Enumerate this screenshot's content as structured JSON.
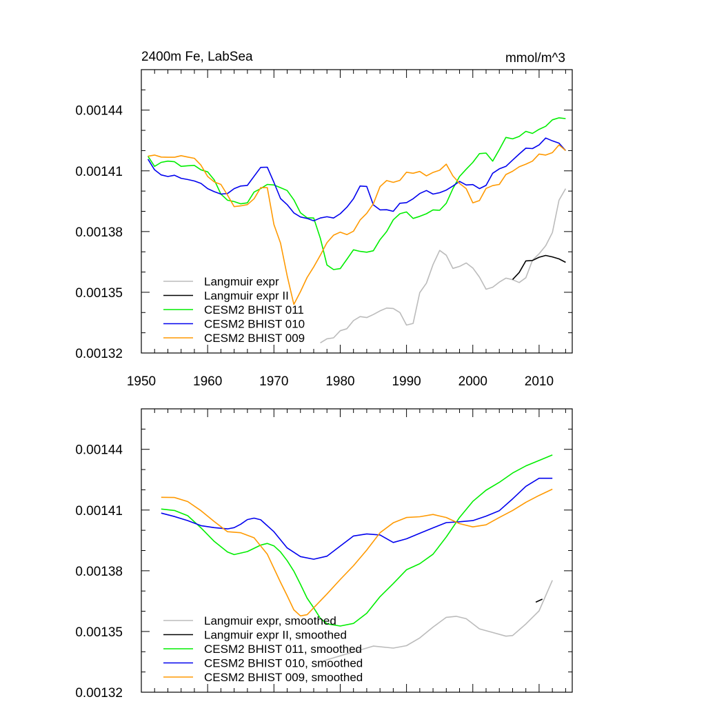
{
  "chart_data": [
    {
      "type": "line",
      "title": "2400m Fe, LabSea",
      "units": "mmol/m^3",
      "xlim": [
        1950,
        2015
      ],
      "ylim": [
        0.00132,
        0.00146
      ],
      "xticks": [
        1950,
        1960,
        1970,
        1980,
        1990,
        2000,
        2010
      ],
      "xtick_labels": [
        "1950",
        "1960",
        "1970",
        "1980",
        "1990",
        "2000",
        "2010"
      ],
      "yticks": [
        0.00132,
        0.00135,
        0.00138,
        0.00141,
        0.00144
      ],
      "ytick_labels": [
        "0.00132",
        "0.00135",
        "0.00138",
        "0.00141",
        "0.00144"
      ],
      "legend_position": "bottom-left",
      "series": [
        {
          "name": "Langmuir expr",
          "color": "#bbbbbb",
          "x": [
            1977,
            1978,
            1979,
            1980,
            1981,
            1982,
            1983,
            1984,
            1985,
            1986,
            1987,
            1988,
            1989,
            1990,
            1991,
            1992,
            1993,
            1994,
            1995,
            1996,
            1997,
            1998,
            1999,
            2000,
            2001,
            2002,
            2003,
            2004,
            2005,
            2006,
            2007,
            2008,
            2009,
            2010,
            2011,
            2012,
            2013,
            2014
          ],
          "y": [
            0.001325,
            0.001327,
            0.0013275,
            0.001331,
            0.001332,
            0.001336,
            0.001338,
            0.0013375,
            0.001339,
            0.0013408,
            0.0013422,
            0.001342,
            0.00134,
            0.0013338,
            0.0013346,
            0.0013498,
            0.0013545,
            0.0013637,
            0.0013707,
            0.0013683,
            0.0013618,
            0.0013628,
            0.0013645,
            0.001362,
            0.0013575,
            0.0013515,
            0.0013525,
            0.001355,
            0.001357,
            0.0013562,
            0.0013548,
            0.0013572,
            0.0013658,
            0.001369,
            0.001373,
            0.0013795,
            0.0013955,
            0.0014012
          ]
        },
        {
          "name": "Langmuir expr II",
          "color": "#000000",
          "x": [
            2006,
            2007,
            2008,
            2009,
            2010,
            2011,
            2012,
            2013,
            2014
          ],
          "y": [
            0.0013563,
            0.0013598,
            0.0013655,
            0.0013657,
            0.0013673,
            0.0013682,
            0.0013675,
            0.0013665,
            0.0013648
          ]
        },
        {
          "name": "CESM2 BHIST 011",
          "color": "#00ee00",
          "x": [
            1951,
            1952,
            1953,
            1954,
            1955,
            1956,
            1957,
            1958,
            1959,
            1960,
            1961,
            1962,
            1963,
            1964,
            1965,
            1966,
            1967,
            1968,
            1969,
            1970,
            1971,
            1972,
            1973,
            1974,
            1975,
            1976,
            1977,
            1978,
            1979,
            1980,
            1981,
            1982,
            1983,
            1984,
            1985,
            1986,
            1987,
            1988,
            1989,
            1990,
            1991,
            1992,
            1993,
            1994,
            1995,
            1996,
            1997,
            1998,
            1999,
            2000,
            2001,
            2002,
            2003,
            2004,
            2005,
            2006,
            2007,
            2008,
            2009,
            2010,
            2011,
            2012,
            2013,
            2014
          ],
          "y": [
            0.0014172,
            0.0014122,
            0.0014142,
            0.0014148,
            0.0014145,
            0.0014122,
            0.0014125,
            0.0014127,
            0.0014105,
            0.0014095,
            0.0014055,
            0.0013985,
            0.0013955,
            0.0013948,
            0.0013937,
            0.0013942,
            0.0013995,
            0.0014012,
            0.0014033,
            0.001403,
            0.0014017,
            0.0014003,
            0.0013957,
            0.0013893,
            0.0013868,
            0.0013867,
            0.0013767,
            0.0013635,
            0.0013612,
            0.0013617,
            0.0013663,
            0.001371,
            0.0013702,
            0.0013698,
            0.0013705,
            0.001376,
            0.00138,
            0.0013858,
            0.0013888,
            0.0013897,
            0.0013865,
            0.0013875,
            0.0013888,
            0.0013907,
            0.0013905,
            0.001394,
            0.0014012,
            0.0014072,
            0.0014108,
            0.0014142,
            0.0014185,
            0.0014188,
            0.0014148,
            0.0014205,
            0.0014265,
            0.0014258,
            0.001427,
            0.0014295,
            0.0014285,
            0.0014305,
            0.001432,
            0.0014352,
            0.0014362,
            0.0014358
          ]
        },
        {
          "name": "CESM2 BHIST 010",
          "color": "#0000ee",
          "x": [
            1951,
            1952,
            1953,
            1954,
            1955,
            1956,
            1957,
            1958,
            1959,
            1960,
            1961,
            1962,
            1963,
            1964,
            1965,
            1966,
            1967,
            1968,
            1969,
            1970,
            1971,
            1972,
            1973,
            1974,
            1975,
            1976,
            1977,
            1978,
            1979,
            1980,
            1981,
            1982,
            1983,
            1984,
            1985,
            1986,
            1987,
            1988,
            1989,
            1990,
            1991,
            1992,
            1993,
            1994,
            1995,
            1996,
            1997,
            1998,
            1999,
            2000,
            2001,
            2002,
            2003,
            2004,
            2005,
            2006,
            2007,
            2008,
            2009,
            2010,
            2011,
            2012,
            2013,
            2014
          ],
          "y": [
            0.0014158,
            0.0014105,
            0.001408,
            0.0014072,
            0.0014078,
            0.0014063,
            0.0014057,
            0.001405,
            0.0014038,
            0.0014012,
            0.0013997,
            0.0013985,
            0.0013988,
            0.0014012,
            0.0014025,
            0.0014028,
            0.0014073,
            0.0014117,
            0.0014118,
            0.0014043,
            0.0013963,
            0.0013933,
            0.0013892,
            0.0013872,
            0.0013865,
            0.0013853,
            0.0013867,
            0.0013873,
            0.0013867,
            0.0013888,
            0.001392,
            0.0013962,
            0.0014025,
            0.0014023,
            0.0013932,
            0.0013907,
            0.0013908,
            0.00139,
            0.001394,
            0.0013943,
            0.0013962,
            0.0013988,
            0.0014003,
            0.0013985,
            0.0013992,
            0.0014005,
            0.0014025,
            0.0014048,
            0.001403,
            0.0014032,
            0.0014012,
            0.0014028,
            0.0014088,
            0.001411,
            0.0014122,
            0.0014153,
            0.0014183,
            0.0014212,
            0.001421,
            0.0014228,
            0.0014262,
            0.0014248,
            0.0014237,
            0.00142
          ]
        },
        {
          "name": "CESM2 BHIST 009",
          "color": "#ff9900",
          "x": [
            1951,
            1952,
            1953,
            1954,
            1955,
            1956,
            1957,
            1958,
            1959,
            1960,
            1961,
            1962,
            1963,
            1964,
            1965,
            1966,
            1967,
            1968,
            1969,
            1970,
            1971,
            1972,
            1973,
            1974,
            1975,
            1976,
            1977,
            1978,
            1979,
            1980,
            1981,
            1982,
            1983,
            1984,
            1985,
            1986,
            1987,
            1988,
            1989,
            1990,
            1991,
            1992,
            1993,
            1994,
            1995,
            1996,
            1997,
            1998,
            1999,
            2000,
            2001,
            2002,
            2003,
            2004,
            2005,
            2006,
            2007,
            2008,
            2009,
            2010,
            2011,
            2012,
            2013,
            2014
          ],
          "y": [
            0.0014172,
            0.0014178,
            0.0014168,
            0.0014167,
            0.0014167,
            0.0014175,
            0.0014168,
            0.0014162,
            0.0014128,
            0.0014072,
            0.0014045,
            0.0014033,
            0.001398,
            0.0013923,
            0.0013927,
            0.0013933,
            0.0013962,
            0.0014017,
            0.0014017,
            0.0013835,
            0.0013743,
            0.0013582,
            0.001344,
            0.0013503,
            0.0013573,
            0.0013625,
            0.0013683,
            0.0013745,
            0.0013782,
            0.0013797,
            0.0013785,
            0.0013802,
            0.0013857,
            0.001389,
            0.0013937,
            0.0014022,
            0.0014052,
            0.0014043,
            0.0014053,
            0.0014093,
            0.0014088,
            0.0014097,
            0.0014075,
            0.0014092,
            0.0014103,
            0.0014133,
            0.0014075,
            0.0014038,
            0.0014012,
            0.0013942,
            0.0013953,
            0.0014013,
            0.0014027,
            0.0014033,
            0.0014082,
            0.0014098,
            0.001412,
            0.0014133,
            0.0014148,
            0.0014183,
            0.0014178,
            0.001419,
            0.0014228,
            0.00142
          ]
        }
      ]
    },
    {
      "type": "line",
      "title": "",
      "xlim": [
        1950,
        2015
      ],
      "ylim": [
        0.00132,
        0.00146
      ],
      "xticks": [
        1950,
        1960,
        1970,
        1980,
        1990,
        2000,
        2010
      ],
      "yticks": [
        0.00132,
        0.00135,
        0.00138,
        0.00141,
        0.00144
      ],
      "ytick_labels": [
        "0.00132",
        "0.00135",
        "0.00138",
        "0.00141",
        "0.00144"
      ],
      "legend_position": "bottom-left",
      "series": [
        {
          "name": "Langmuir expr, smoothed",
          "color": "#bbbbbb",
          "x": [
            1977,
            1980,
            1985,
            1988,
            1990,
            1992,
            1994,
            1996,
            1997.5,
            1999,
            2001,
            2003,
            2005,
            2006,
            2008,
            2010,
            2012
          ],
          "y": [
            0.001335,
            0.001338,
            0.0013428,
            0.0013418,
            0.001343,
            0.0013468,
            0.0013522,
            0.001357,
            0.0013575,
            0.0013563,
            0.0013513,
            0.0013495,
            0.0013477,
            0.001348,
            0.0013537,
            0.0013602,
            0.0013753
          ]
        },
        {
          "name": "Langmuir expr II, smoothed",
          "color": "#000000",
          "x": [
            2009.5,
            2010.5
          ],
          "y": [
            0.0013645,
            0.001366
          ]
        },
        {
          "name": "CESM2 BHIST 011, smoothed",
          "color": "#00ee00",
          "x": [
            1953,
            1955,
            1957,
            1959,
            1961,
            1963,
            1964,
            1966,
            1968,
            1969,
            1970,
            1971,
            1972,
            1973,
            1974,
            1975,
            1976,
            1977,
            1978,
            1980,
            1982,
            1984,
            1986,
            1988,
            1990,
            1992,
            1994,
            1996,
            1998,
            2000,
            2002,
            2004,
            2006,
            2008,
            2010,
            2012
          ],
          "y": [
            0.0014105,
            0.0014098,
            0.0014072,
            0.0014012,
            0.0013945,
            0.0013893,
            0.001388,
            0.0013895,
            0.0013927,
            0.0013935,
            0.0013923,
            0.0013893,
            0.001385,
            0.0013798,
            0.0013733,
            0.0013665,
            0.0013617,
            0.0013565,
            0.0013538,
            0.0013527,
            0.001354,
            0.001359,
            0.0013672,
            0.0013737,
            0.0013805,
            0.0013835,
            0.0013882,
            0.0013967,
            0.0014063,
            0.0014143,
            0.0014198,
            0.0014237,
            0.0014283,
            0.0014318,
            0.0014345,
            0.0014372
          ]
        },
        {
          "name": "CESM2 BHIST 010, smoothed",
          "color": "#0000ee",
          "x": [
            1953,
            1955,
            1957,
            1959,
            1961,
            1963,
            1964,
            1965,
            1966,
            1967,
            1968,
            1970,
            1972,
            1974,
            1976,
            1978,
            1980,
            1982,
            1984,
            1986,
            1988,
            1990,
            1992,
            1994,
            1996,
            1998,
            2000,
            2002,
            2004,
            2006,
            2008,
            2010,
            2012
          ],
          "y": [
            0.0014085,
            0.0014068,
            0.0014048,
            0.0014023,
            0.0014013,
            0.0014007,
            0.0014013,
            0.001403,
            0.0014053,
            0.001406,
            0.0014052,
            0.0013993,
            0.0013913,
            0.001387,
            0.0013857,
            0.0013872,
            0.0013922,
            0.0013972,
            0.0013982,
            0.0013977,
            0.001394,
            0.0013958,
            0.0013985,
            0.0014012,
            0.0014038,
            0.0014042,
            0.0014048,
            0.001407,
            0.0014097,
            0.0014155,
            0.0014217,
            0.0014257,
            0.0014257
          ]
        },
        {
          "name": "CESM2 BHIST 009, smoothed",
          "color": "#ff9900",
          "x": [
            1953,
            1955,
            1957,
            1959,
            1961,
            1963,
            1965,
            1967,
            1969,
            1971,
            1972,
            1973,
            1974,
            1975,
            1976,
            1978,
            1980,
            1982,
            1984,
            1986,
            1988,
            1990,
            1992,
            1994,
            1996,
            1998,
            2000,
            2002,
            2004,
            2006,
            2008,
            2010,
            2012
          ],
          "y": [
            0.0014163,
            0.0014162,
            0.0014142,
            0.0014097,
            0.0014043,
            0.0013993,
            0.0013988,
            0.0013963,
            0.0013882,
            0.0013743,
            0.0013677,
            0.0013607,
            0.0013577,
            0.0013583,
            0.0013617,
            0.0013685,
            0.0013757,
            0.0013825,
            0.0013902,
            0.0013988,
            0.0014037,
            0.0014063,
            0.0014067,
            0.0014078,
            0.0014063,
            0.0014033,
            0.0014017,
            0.0014027,
            0.0014063,
            0.0014098,
            0.0014138,
            0.0014172,
            0.0014203
          ]
        }
      ]
    }
  ]
}
